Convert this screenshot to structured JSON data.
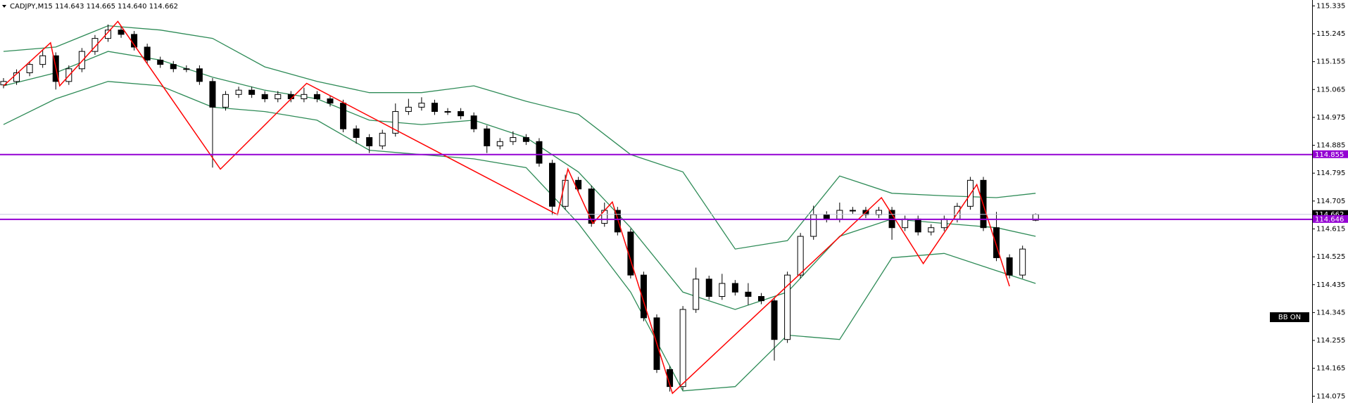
{
  "chart_data": {
    "type": "candlestick",
    "title": "CADJPY,M15  114.643 114.665 114.640 114.662",
    "open": [
      115.08,
      115.091,
      115.119,
      115.146,
      115.174,
      115.091,
      115.132,
      115.188,
      115.23,
      115.257,
      115.243,
      115.202,
      115.16,
      115.146,
      115.132,
      115.132,
      115.091,
      115.008,
      115.049,
      115.063,
      115.049,
      115.035,
      115.049,
      115.035,
      115.049,
      115.035,
      115.021,
      114.938,
      114.91,
      114.883,
      114.924,
      114.994,
      115.008,
      115.021,
      114.994,
      114.994,
      114.98,
      114.938,
      114.883,
      114.897,
      114.91,
      114.897,
      114.827,
      114.688,
      114.772,
      114.744,
      114.633,
      114.675,
      114.605,
      114.466,
      114.328,
      114.161,
      114.106,
      114.355,
      114.453,
      114.397,
      114.439,
      114.411,
      114.397,
      114.383,
      114.258,
      114.466,
      114.591,
      114.661,
      114.647,
      114.675,
      114.675,
      114.661,
      114.675,
      114.619,
      114.647,
      114.605,
      114.619,
      114.647,
      114.688,
      114.772,
      114.619,
      114.522,
      114.466,
      114.643
    ],
    "high": [
      115.102,
      115.13,
      115.157,
      115.195,
      115.185,
      115.143,
      115.199,
      115.241,
      115.275,
      115.268,
      115.254,
      115.213,
      115.171,
      115.157,
      115.143,
      115.143,
      115.102,
      115.06,
      115.074,
      115.074,
      115.06,
      115.06,
      115.06,
      115.071,
      115.06,
      115.046,
      115.032,
      114.949,
      114.921,
      114.935,
      115.02,
      115.035,
      115.04,
      115.032,
      115.005,
      115.005,
      114.991,
      114.949,
      114.908,
      114.93,
      114.921,
      114.908,
      114.838,
      114.79,
      114.783,
      114.755,
      114.7,
      114.686,
      114.616,
      114.477,
      114.339,
      114.172,
      114.366,
      114.49,
      114.464,
      114.47,
      114.45,
      114.44,
      114.408,
      114.394,
      114.477,
      114.602,
      114.69,
      114.672,
      114.7,
      114.686,
      114.686,
      114.686,
      114.686,
      114.658,
      114.658,
      114.63,
      114.658,
      114.699,
      114.783,
      114.783,
      114.67,
      114.533,
      114.561,
      114.665
    ],
    "low": [
      115.069,
      115.08,
      115.108,
      115.135,
      115.065,
      115.08,
      115.121,
      115.177,
      115.219,
      115.232,
      115.191,
      115.149,
      115.135,
      115.121,
      115.121,
      115.08,
      114.813,
      114.997,
      115.038,
      115.038,
      115.024,
      115.024,
      115.024,
      115.024,
      115.024,
      115.01,
      114.927,
      114.89,
      114.86,
      114.872,
      114.913,
      114.983,
      114.997,
      114.983,
      114.983,
      114.969,
      114.927,
      114.86,
      114.872,
      114.886,
      114.886,
      114.816,
      114.66,
      114.677,
      114.733,
      114.622,
      114.622,
      114.594,
      114.455,
      114.317,
      114.15,
      114.09,
      114.095,
      114.344,
      114.386,
      114.386,
      114.4,
      114.37,
      114.372,
      114.19,
      114.247,
      114.455,
      114.58,
      114.636,
      114.636,
      114.664,
      114.65,
      114.65,
      114.58,
      114.608,
      114.594,
      114.594,
      114.608,
      114.636,
      114.677,
      114.608,
      114.511,
      114.455,
      114.455,
      114.64
    ],
    "close": [
      115.091,
      115.119,
      115.146,
      115.174,
      115.091,
      115.132,
      115.188,
      115.23,
      115.257,
      115.243,
      115.202,
      115.16,
      115.146,
      115.132,
      115.132,
      115.091,
      115.008,
      115.049,
      115.063,
      115.049,
      115.035,
      115.049,
      115.035,
      115.049,
      115.035,
      115.021,
      114.938,
      114.91,
      114.883,
      114.924,
      114.994,
      115.008,
      115.021,
      114.994,
      114.994,
      114.98,
      114.938,
      114.883,
      114.897,
      114.91,
      114.897,
      114.827,
      114.688,
      114.772,
      114.744,
      114.633,
      114.675,
      114.605,
      114.466,
      114.328,
      114.161,
      114.106,
      114.355,
      114.453,
      114.397,
      114.439,
      114.411,
      114.397,
      114.383,
      114.258,
      114.466,
      114.591,
      114.661,
      114.647,
      114.675,
      114.675,
      114.661,
      114.675,
      114.619,
      114.647,
      114.605,
      114.619,
      114.647,
      114.688,
      114.772,
      114.619,
      114.522,
      114.466,
      114.55,
      114.662
    ],
    "bands": {
      "color": "#2e8b57",
      "x": [
        0,
        4,
        8,
        12,
        16,
        20,
        24,
        28,
        32,
        36,
        40,
        44,
        48,
        52,
        56,
        60,
        64,
        68,
        72,
        76,
        79
      ],
      "upper": [
        115.188,
        115.202,
        115.271,
        115.257,
        115.23,
        115.138,
        115.091,
        115.055,
        115.055,
        115.077,
        115.027,
        114.985,
        114.855,
        114.799,
        114.55,
        114.577,
        114.786,
        114.73,
        114.722,
        114.716,
        114.73
      ],
      "middle": [
        115.077,
        115.119,
        115.188,
        115.16,
        115.105,
        115.063,
        115.035,
        114.966,
        114.952,
        114.966,
        114.91,
        114.799,
        114.619,
        114.411,
        114.355,
        114.411,
        114.591,
        114.647,
        114.633,
        114.619,
        114.591
      ],
      "lower": [
        114.952,
        115.035,
        115.091,
        115.077,
        115.008,
        114.994,
        114.966,
        114.869,
        114.855,
        114.841,
        114.813,
        114.633,
        114.411,
        114.092,
        114.106,
        114.272,
        114.258,
        114.522,
        114.536,
        114.48,
        114.439
      ]
    },
    "zigzag": {
      "color": "#ff0000",
      "x": [
        0,
        3.6,
        4.3,
        8.75,
        16.6,
        23.2,
        42.4,
        43.2,
        45.1,
        46.6,
        51.2,
        67.2,
        70.4,
        74.5,
        77
      ],
      "values": [
        115.077,
        115.216,
        115.077,
        115.285,
        114.808,
        115.085,
        114.661,
        114.808,
        114.633,
        114.702,
        114.084,
        114.716,
        114.503,
        114.758,
        114.43
      ]
    },
    "hlines": [
      {
        "value": 114.855,
        "color": "#9400d3"
      },
      {
        "value": 114.646,
        "color": "#9400d3"
      }
    ],
    "current_price": 114.662,
    "badge": "BB ON",
    "ylim": [
      114.053,
      115.354
    ],
    "yticks": [
      115.335,
      115.245,
      115.155,
      115.065,
      114.975,
      114.885,
      114.795,
      114.705,
      114.615,
      114.525,
      114.435,
      114.345,
      114.255,
      114.165,
      114.075
    ]
  }
}
